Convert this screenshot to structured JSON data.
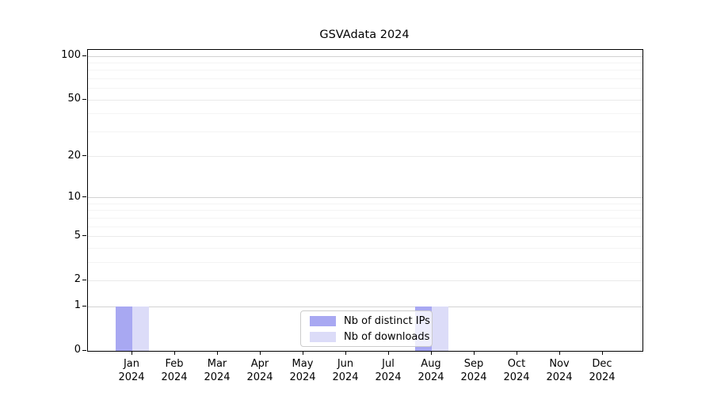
{
  "chart_data": {
    "type": "bar",
    "title": "GSVAdata 2024",
    "categories": [
      "Jan 2024",
      "Feb 2024",
      "Mar 2024",
      "Apr 2024",
      "May 2024",
      "Jun 2024",
      "Jul 2024",
      "Aug 2024",
      "Sep 2024",
      "Oct 2024",
      "Nov 2024",
      "Dec 2024"
    ],
    "series": [
      {
        "name": "Nb of distinct IPs",
        "color": "#a8a8f2",
        "values": [
          1,
          0,
          0,
          0,
          0,
          0,
          0,
          1,
          0,
          0,
          0,
          0
        ]
      },
      {
        "name": "Nb of downloads",
        "color": "#dcdcf8",
        "values": [
          1,
          0,
          0,
          0,
          0,
          0,
          0,
          1,
          0,
          0,
          0,
          0
        ]
      }
    ],
    "xlabel": "",
    "ylabel": "",
    "yscale": "log1p",
    "ylim": [
      0,
      110
    ],
    "y_tick_values": [
      0,
      1,
      2,
      5,
      10,
      20,
      50,
      100
    ],
    "y_decade_grid_values": [
      1,
      10,
      100
    ],
    "y_minor_grid_values": [
      3,
      4,
      6,
      7,
      8,
      9,
      30,
      40,
      60,
      70,
      80,
      90
    ],
    "grid": "horizontal",
    "legend_position": "lower center",
    "colors": {
      "decade_grid": "#d2d2d2",
      "major_grid": "#eaeaea",
      "minor_grid": "#f4f4f4",
      "axis": "#000000",
      "legend_border": "#cccccc",
      "background": "#ffffff"
    }
  }
}
